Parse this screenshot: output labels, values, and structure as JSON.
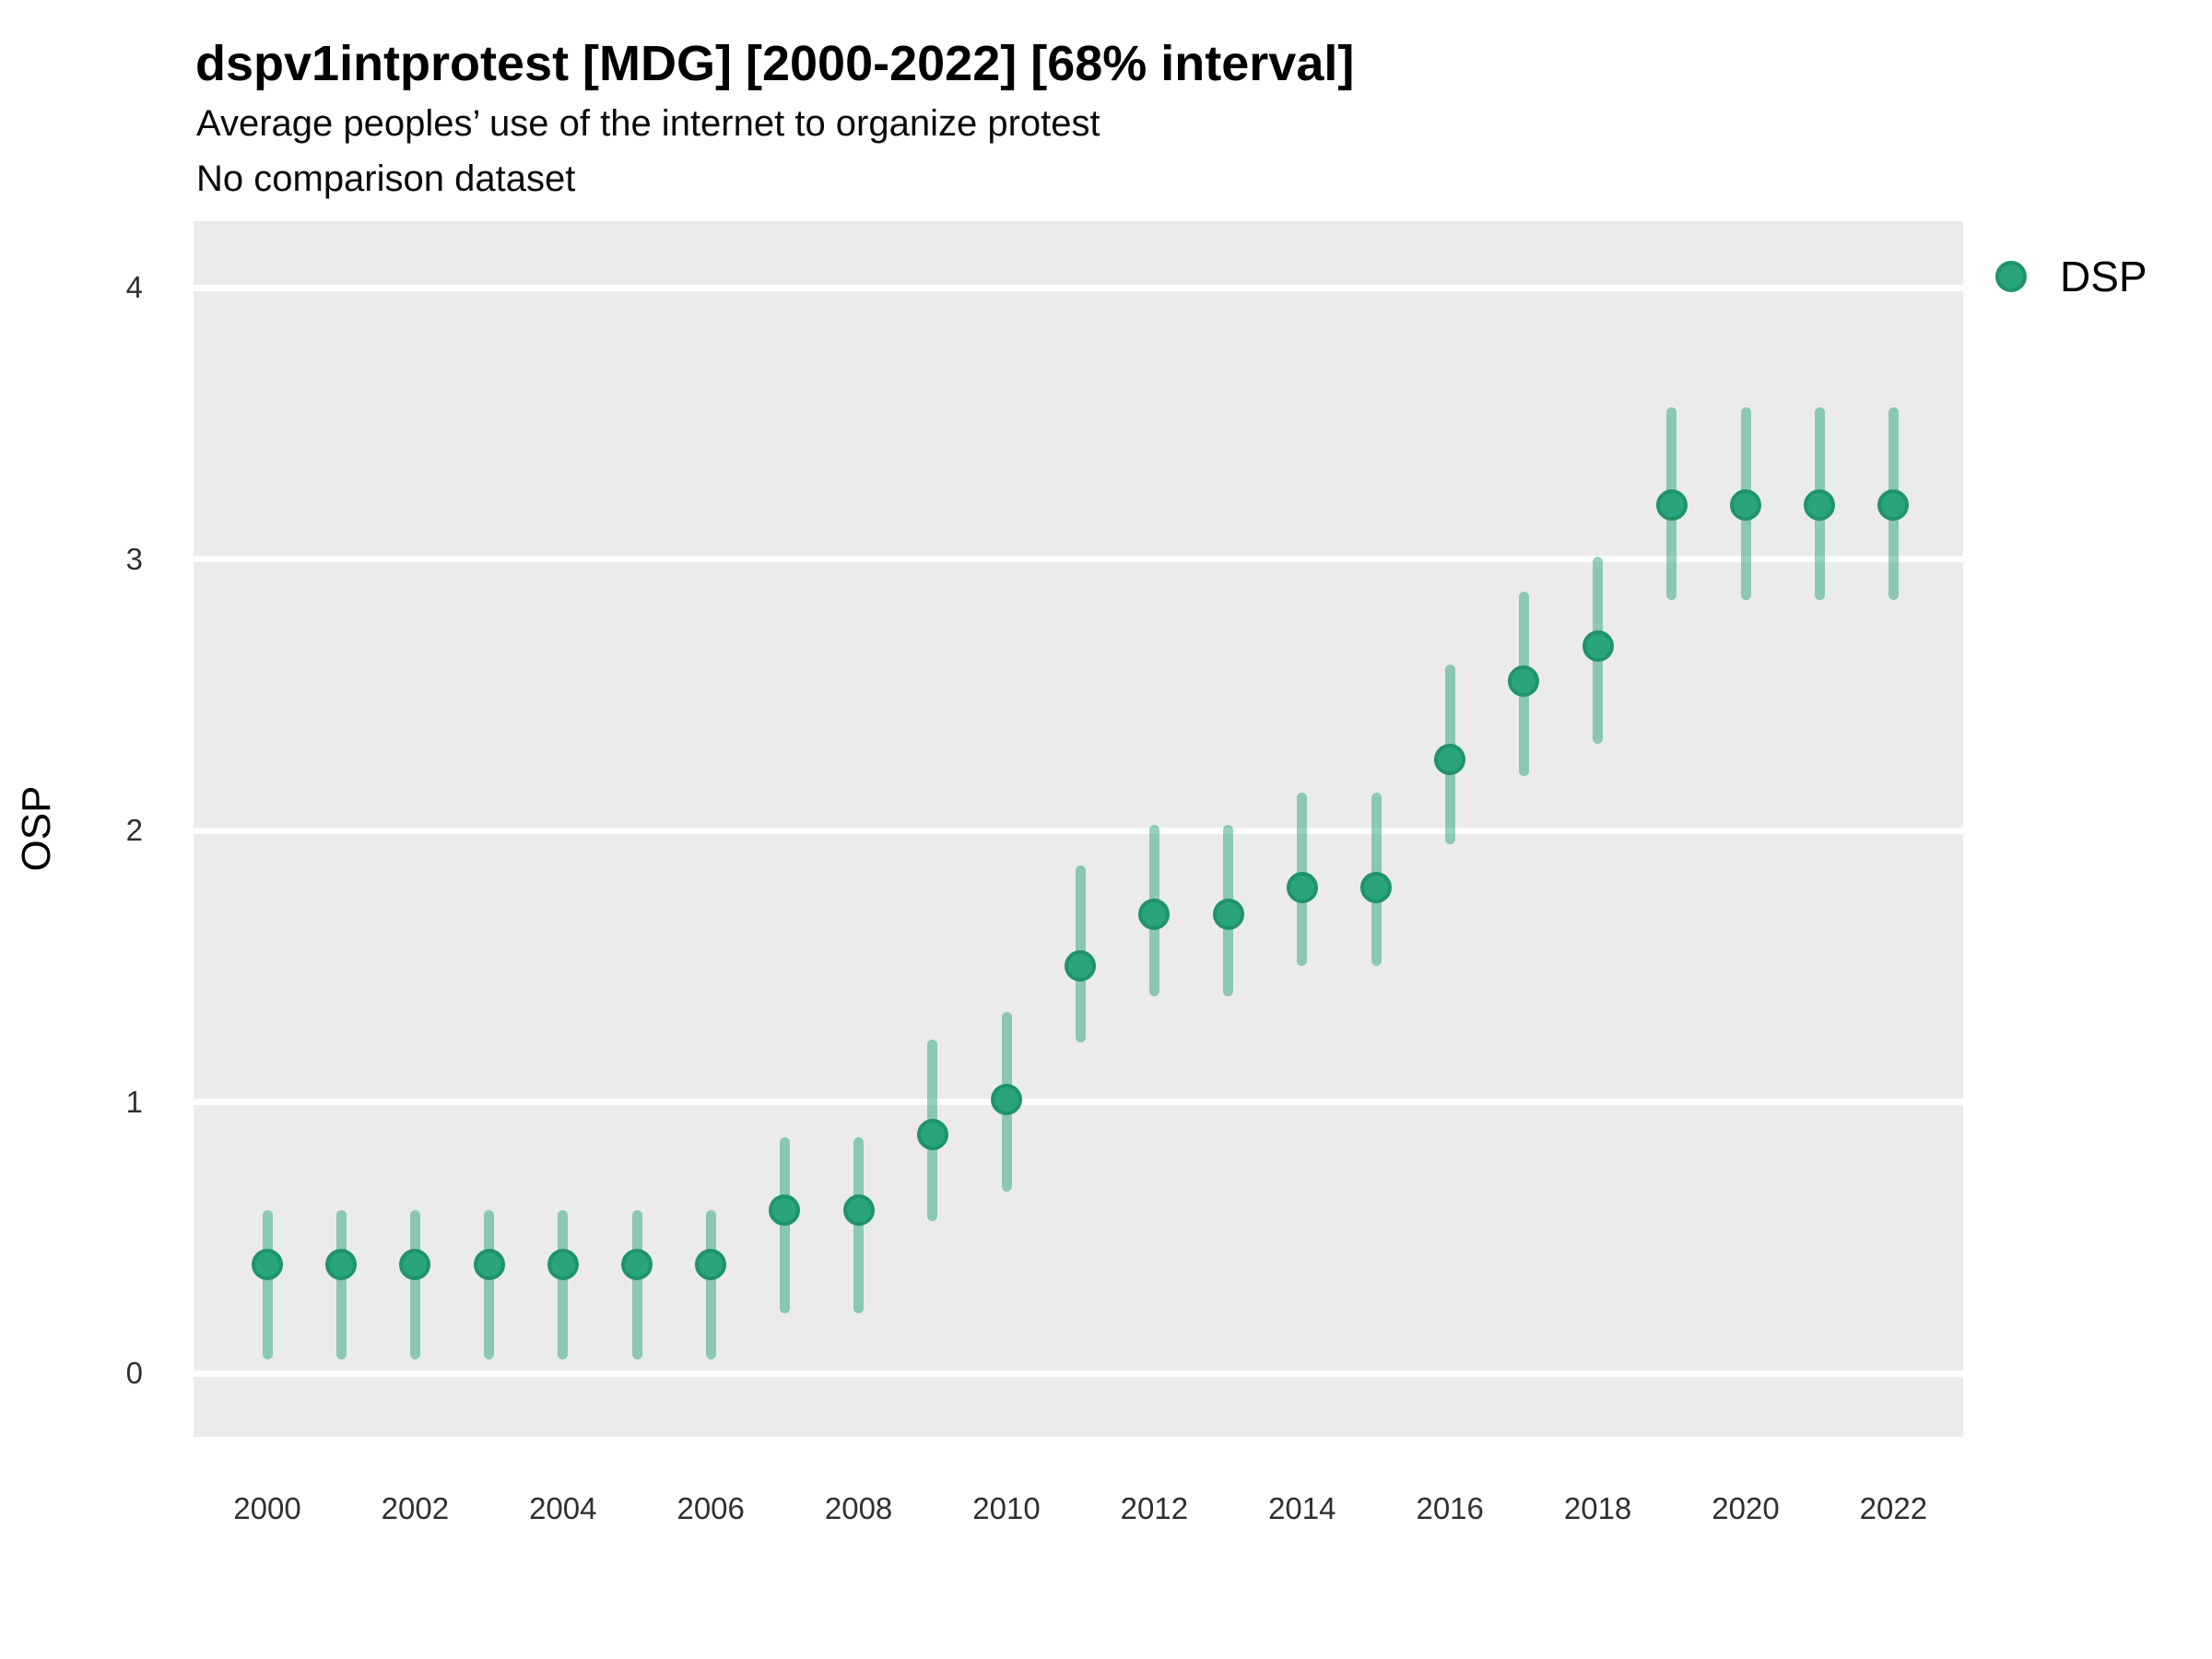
{
  "header": {
    "title": "dspv1intprotest [MDG] [2000-2022] [68% interval]",
    "subtitle_line1": "Average peoples’ use of the internet to organize protest",
    "subtitle_line2": "No comparison dataset"
  },
  "y_axis": {
    "label": "OSP",
    "tick_labels": [
      "4",
      "3",
      "2",
      "1",
      "0"
    ]
  },
  "x_axis": {
    "tick_labels": [
      "2000",
      "2002",
      "2004",
      "2006",
      "2008",
      "2010",
      "2012",
      "2014",
      "2016",
      "2018",
      "2020",
      "2022"
    ]
  },
  "legend": {
    "items": [
      {
        "label": "DSP",
        "marker_color": "#2AA47D"
      }
    ]
  },
  "colors": {
    "panel_background": "#EBEBEB",
    "gridline": "#FFFFFF",
    "point_fill": "#2AA47D",
    "point_stroke": "#1F9468",
    "interval_bar": "rgba(42,164,125,0.5)"
  },
  "chart_data": {
    "type": "scatter",
    "mark": "pointrange",
    "title": "dspv1intprotest [MDG] [2000-2022] [68% interval]",
    "subtitle": [
      "Average peoples’ use of the internet to organize protest",
      "No comparison dataset"
    ],
    "interval_label": "68% interval",
    "country_code": "MDG",
    "xlabel": "",
    "ylabel": "OSP",
    "ylim": [
      0,
      4
    ],
    "y_ticks": [
      0,
      1,
      2,
      3,
      4
    ],
    "x_ticks": [
      2000,
      2002,
      2004,
      2006,
      2008,
      2010,
      2012,
      2014,
      2016,
      2018,
      2020,
      2022
    ],
    "grid": true,
    "legend_position": "right",
    "series": [
      {
        "name": "DSP",
        "x": [
          2000,
          2001,
          2002,
          2003,
          2004,
          2005,
          2006,
          2007,
          2008,
          2009,
          2010,
          2011,
          2012,
          2013,
          2014,
          2015,
          2016,
          2017,
          2018,
          2019,
          2020,
          2021,
          2022
        ],
        "y": [
          0.4,
          0.4,
          0.4,
          0.4,
          0.4,
          0.4,
          0.4,
          0.6,
          0.6,
          0.88,
          1.01,
          1.5,
          1.69,
          1.69,
          1.79,
          1.79,
          2.26,
          2.55,
          2.68,
          3.2,
          3.2,
          3.2,
          3.2
        ],
        "low": [
          0.05,
          0.05,
          0.05,
          0.05,
          0.05,
          0.05,
          0.05,
          0.22,
          0.22,
          0.56,
          0.67,
          1.22,
          1.39,
          1.39,
          1.5,
          1.5,
          1.95,
          2.2,
          2.32,
          2.85,
          2.85,
          2.85,
          2.85
        ],
        "high": [
          0.6,
          0.6,
          0.6,
          0.6,
          0.6,
          0.6,
          0.6,
          0.87,
          0.87,
          1.23,
          1.33,
          1.87,
          2.02,
          2.02,
          2.14,
          2.14,
          2.61,
          2.88,
          3.01,
          3.56,
          3.56,
          3.56,
          3.56
        ]
      }
    ]
  }
}
